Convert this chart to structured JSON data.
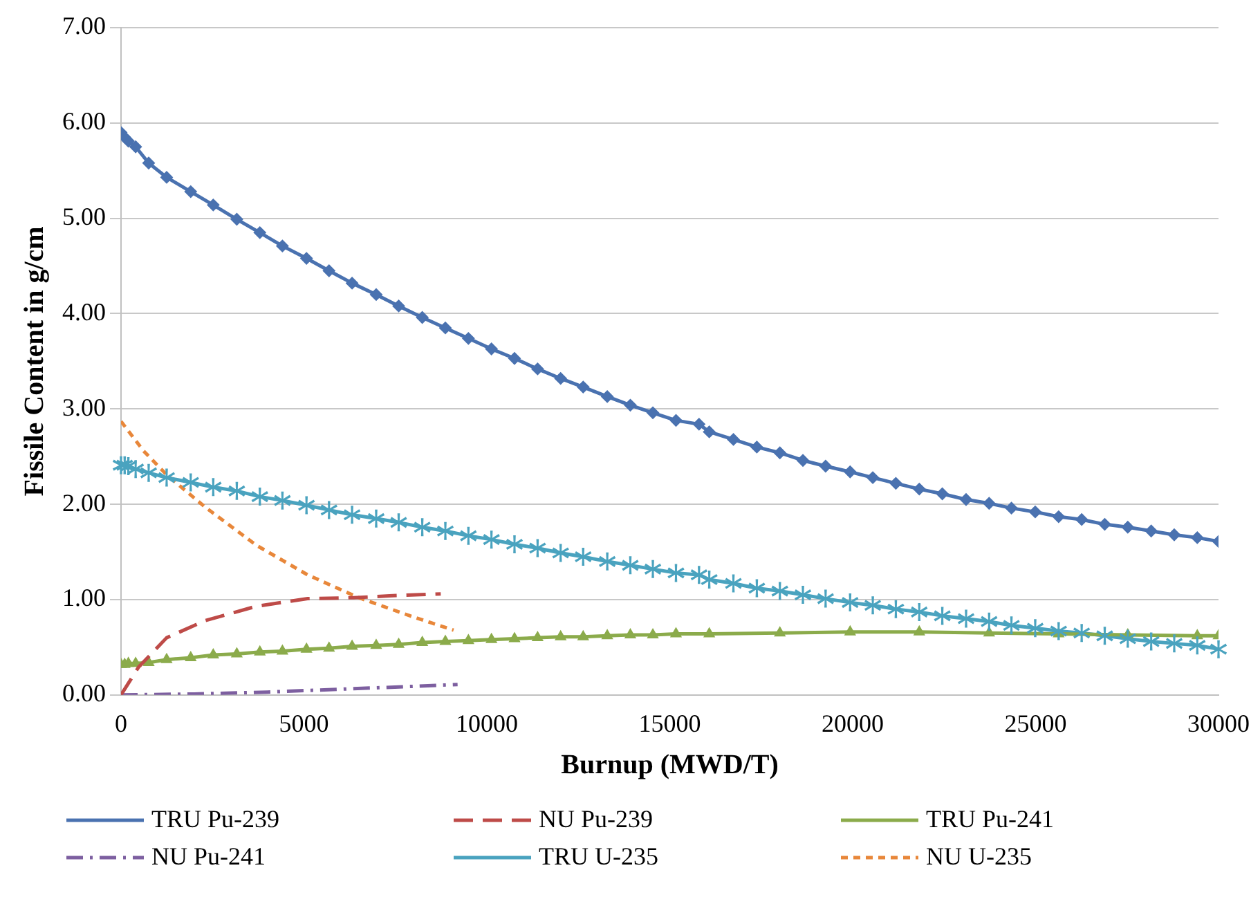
{
  "chart_data": {
    "type": "line",
    "xlabel": "Burnup (MWD/T)",
    "ylabel": "Fissile Content in g/cm",
    "legend": "bottom",
    "grid": "y",
    "xlim": [
      0,
      30000
    ],
    "xticks": [
      0,
      5000,
      10000,
      15000,
      20000,
      25000,
      30000
    ],
    "ylim": [
      0,
      7
    ],
    "yticks": [
      {
        "value": 0,
        "label": "0.00"
      },
      {
        "value": 1,
        "label": "1.00"
      },
      {
        "value": 2,
        "label": "2.00"
      },
      {
        "value": 3,
        "label": "3.00"
      },
      {
        "value": 4,
        "label": "4.00"
      },
      {
        "value": 5,
        "label": "5.00"
      },
      {
        "value": 6,
        "label": "6.00"
      },
      {
        "value": 7,
        "label": "7.00"
      }
    ],
    "series": [
      {
        "name": "TRU Pu-239",
        "color": "#4a72b0",
        "marker": "diamond",
        "line_style": "solid",
        "x": [
          0,
          100,
          200,
          400,
          756,
          1247,
          1905,
          2521,
          3165,
          3795,
          4412,
          5070,
          5686,
          6316,
          6975,
          7590,
          8235,
          8866,
          9496,
          10126,
          10756,
          11387,
          12017,
          12633,
          13292,
          13922,
          14538,
          15170,
          15800,
          16080,
          16740,
          17380,
          18010,
          18640,
          19260,
          19930,
          20550,
          21180,
          21820,
          22450,
          23100,
          23730,
          24340,
          24990,
          25630,
          26260,
          26890,
          27520,
          28160,
          28790,
          29420,
          30000
        ],
        "values": [
          5.9,
          5.85,
          5.81,
          5.75,
          5.58,
          5.43,
          5.28,
          5.14,
          4.99,
          4.85,
          4.71,
          4.58,
          4.45,
          4.32,
          4.2,
          4.08,
          3.96,
          3.85,
          3.74,
          3.63,
          3.53,
          3.42,
          3.32,
          3.23,
          3.13,
          3.04,
          2.96,
          2.88,
          2.84,
          2.76,
          2.68,
          2.6,
          2.54,
          2.46,
          2.4,
          2.34,
          2.28,
          2.22,
          2.16,
          2.11,
          2.05,
          2.01,
          1.96,
          1.92,
          1.87,
          1.84,
          1.79,
          1.76,
          1.72,
          1.68,
          1.65,
          1.61
        ]
      },
      {
        "name": "NU Pu-239",
        "color": "#be4b48",
        "marker": "none",
        "line_style": "dashed",
        "x": [
          0,
          476,
          1247,
          2300,
          3700,
          5100,
          6360,
          7340,
          8740
        ],
        "values": [
          0,
          0.29,
          0.6,
          0.78,
          0.93,
          1.01,
          1.02,
          1.04,
          1.06
        ]
      },
      {
        "name": "TRU Pu-241",
        "color": "#8bab4b",
        "marker": "triangle",
        "line_style": "solid",
        "x": [
          0,
          100,
          200,
          400,
          756,
          1247,
          1905,
          2521,
          3165,
          3795,
          4412,
          5070,
          5686,
          6316,
          6975,
          7590,
          8235,
          8866,
          9496,
          10126,
          10756,
          11387,
          12017,
          12633,
          13292,
          13922,
          14538,
          15170,
          16080,
          18010,
          19930,
          21820,
          23730,
          25630,
          27520,
          29420,
          30000
        ],
        "values": [
          0.32,
          0.32,
          0.33,
          0.33,
          0.34,
          0.37,
          0.39,
          0.42,
          0.43,
          0.45,
          0.46,
          0.48,
          0.49,
          0.51,
          0.52,
          0.53,
          0.55,
          0.56,
          0.57,
          0.58,
          0.59,
          0.6,
          0.61,
          0.61,
          0.62,
          0.63,
          0.63,
          0.64,
          0.64,
          0.65,
          0.66,
          0.66,
          0.65,
          0.64,
          0.63,
          0.62,
          0.62
        ]
      },
      {
        "name": "NU Pu-241",
        "color": "#7d5fa0",
        "marker": "none",
        "line_style": "dashdot",
        "x": [
          0,
          2000,
          4000,
          6000,
          8000,
          9200
        ],
        "values": [
          0,
          0.01,
          0.03,
          0.06,
          0.09,
          0.11
        ]
      },
      {
        "name": "TRU U-235",
        "color": "#4aa3bf",
        "marker": "star",
        "line_style": "solid",
        "x": [
          0,
          100,
          200,
          400,
          756,
          1247,
          1905,
          2521,
          3165,
          3795,
          4412,
          5070,
          5686,
          6316,
          6975,
          7590,
          8235,
          8866,
          9496,
          10126,
          10756,
          11387,
          12017,
          12633,
          13292,
          13922,
          14538,
          15170,
          15800,
          16080,
          16740,
          17380,
          18010,
          18640,
          19260,
          19930,
          20550,
          21180,
          21820,
          22450,
          23100,
          23730,
          24340,
          24990,
          25630,
          26260,
          26890,
          27520,
          28160,
          28790,
          29420,
          30000
        ],
        "values": [
          2.41,
          2.41,
          2.4,
          2.37,
          2.33,
          2.28,
          2.23,
          2.18,
          2.14,
          2.08,
          2.04,
          1.99,
          1.94,
          1.89,
          1.85,
          1.81,
          1.76,
          1.72,
          1.67,
          1.63,
          1.58,
          1.54,
          1.49,
          1.45,
          1.4,
          1.36,
          1.32,
          1.28,
          1.26,
          1.21,
          1.17,
          1.12,
          1.09,
          1.05,
          1.01,
          0.97,
          0.94,
          0.9,
          0.87,
          0.83,
          0.8,
          0.77,
          0.73,
          0.7,
          0.67,
          0.65,
          0.62,
          0.59,
          0.56,
          0.54,
          0.52,
          0.48
        ]
      },
      {
        "name": "NU U-235",
        "color": "#e8873a",
        "marker": "none",
        "line_style": "dotted",
        "x": [
          0,
          616,
          1247,
          2300,
          3700,
          5100,
          6500,
          7900,
          9090
        ],
        "values": [
          2.87,
          2.56,
          2.31,
          1.97,
          1.57,
          1.26,
          1.02,
          0.83,
          0.68
        ]
      }
    ]
  }
}
